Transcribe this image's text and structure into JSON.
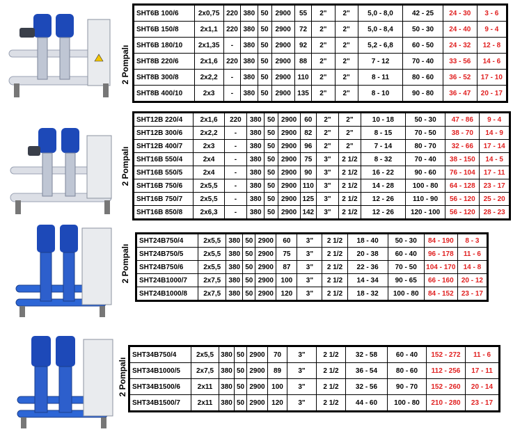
{
  "colors": {
    "red": "#e01f1f",
    "pump_blue": "#1d49b8",
    "panel": "#e9ebee"
  },
  "groups": [
    {
      "label": "2 Pompalı",
      "rows": [
        [
          "SHT6B 100/6",
          "2x0,75",
          "220",
          "380",
          "50",
          "2900",
          "55",
          "2\"",
          "2\"",
          "5,0 - 8,0",
          "42 - 25",
          "24 - 30",
          "3 - 6"
        ],
        [
          "SHT6B 150/8",
          "2x1,1",
          "220",
          "380",
          "50",
          "2900",
          "72",
          "2\"",
          "2\"",
          "5,0 - 8,4",
          "50 - 30",
          "24 - 40",
          "9 - 4"
        ],
        [
          "SHT6B 180/10",
          "2x1,35",
          "-",
          "380",
          "50",
          "2900",
          "92",
          "2\"",
          "2\"",
          "5,2 - 6,8",
          "60 - 50",
          "24 - 32",
          "12 - 8"
        ],
        [
          "SHT8B 220/6",
          "2x1,6",
          "220",
          "380",
          "50",
          "2900",
          "88",
          "2\"",
          "2\"",
          "7 - 12",
          "70 - 40",
          "33 - 56",
          "14 - 6"
        ],
        [
          "SHT8B 300/8",
          "2x2,2",
          "-",
          "380",
          "50",
          "2900",
          "110",
          "2\"",
          "2\"",
          "8 - 11",
          "80 - 60",
          "36 - 52",
          "17 - 10"
        ],
        [
          "SHT8B 400/10",
          "2x3",
          "-",
          "380",
          "50",
          "2900",
          "135",
          "2\"",
          "2\"",
          "8 - 10",
          "90 - 80",
          "36 - 47",
          "20 - 17"
        ]
      ]
    },
    {
      "label": "2 Pompalı",
      "rows": [
        [
          "SHT12B 220/4",
          "2x1,6",
          "220",
          "380",
          "50",
          "2900",
          "60",
          "2\"",
          "2\"",
          "10 - 18",
          "50 - 30",
          "47 - 86",
          "9 - 4"
        ],
        [
          "SHT12B 300/6",
          "2x2,2",
          "-",
          "380",
          "50",
          "2900",
          "82",
          "2\"",
          "2\"",
          "8 - 15",
          "70 - 50",
          "38 - 70",
          "14 - 9"
        ],
        [
          "SHT12B 400/7",
          "2x3",
          "-",
          "380",
          "50",
          "2900",
          "96",
          "2\"",
          "2\"",
          "7 - 14",
          "80 - 70",
          "32 - 66",
          "17 - 14"
        ],
        [
          "SHT16B 550/4",
          "2x4",
          "-",
          "380",
          "50",
          "2900",
          "75",
          "3\"",
          "2 1/2",
          "8 - 32",
          "70 - 40",
          "38 - 150",
          "14 - 5"
        ],
        [
          "SHT16B 550/5",
          "2x4",
          "-",
          "380",
          "50",
          "2900",
          "90",
          "3\"",
          "2 1/2",
          "16 - 22",
          "90 - 60",
          "76 - 104",
          "17 - 11"
        ],
        [
          "SHT16B 750/6",
          "2x5,5",
          "-",
          "380",
          "50",
          "2900",
          "110",
          "3\"",
          "2 1/2",
          "14 - 28",
          "100 - 80",
          "64 - 128",
          "23 - 17"
        ],
        [
          "SHT16B 750/7",
          "2x5,5",
          "-",
          "380",
          "50",
          "2900",
          "125",
          "3\"",
          "2 1/2",
          "12 - 26",
          "110 - 90",
          "56 - 120",
          "25 - 20"
        ],
        [
          "SHT16B 850/8",
          "2x6,3",
          "-",
          "380",
          "50",
          "2900",
          "142",
          "3\"",
          "2 1/2",
          "12 - 26",
          "120 - 100",
          "56 - 120",
          "28 - 23"
        ]
      ]
    },
    {
      "label": "2 Pompalı",
      "rows": [
        [
          "SHT24B750/4",
          "2x5,5",
          "380",
          "50",
          "2900",
          "60",
          "3\"",
          "2 1/2",
          "18 - 40",
          "50 - 30",
          "84 - 190",
          "8 - 3"
        ],
        [
          "SHT24B750/5",
          "2x5,5",
          "380",
          "50",
          "2900",
          "75",
          "3\"",
          "2 1/2",
          "20 - 38",
          "60 - 40",
          "96 - 178",
          "11 - 6"
        ],
        [
          "SHT24B750/6",
          "2x5,5",
          "380",
          "50",
          "2900",
          "87",
          "3\"",
          "2 1/2",
          "22 - 36",
          "70 - 50",
          "104 - 170",
          "14 - 8"
        ],
        [
          "SHT24B1000/7",
          "2x7,5",
          "380",
          "50",
          "2900",
          "100",
          "3\"",
          "2 1/2",
          "14 - 34",
          "90 - 65",
          "66 - 160",
          "20 - 12"
        ],
        [
          "SHT24B1000/8",
          "2x7,5",
          "380",
          "50",
          "2900",
          "120",
          "3\"",
          "2 1/2",
          "18 - 32",
          "100 - 80",
          "84 - 152",
          "23 - 17"
        ]
      ]
    },
    {
      "label": "2 Pompalı",
      "rows": [
        [
          "SHT34B750/4",
          "2x5,5",
          "380",
          "50",
          "2900",
          "70",
          "3\"",
          "2 1/2",
          "32 - 58",
          "60 - 40",
          "152 - 272",
          "11 - 6"
        ],
        [
          "SHT34B1000/5",
          "2x7,5",
          "380",
          "50",
          "2900",
          "89",
          "3\"",
          "2 1/2",
          "36 - 54",
          "80 - 60",
          "112 - 256",
          "17 - 11"
        ],
        [
          "SHT34B1500/6",
          "2x11",
          "380",
          "50",
          "2900",
          "100",
          "3\"",
          "2 1/2",
          "32 - 56",
          "90 - 70",
          "152 - 260",
          "20 - 14"
        ],
        [
          "SHT34B1500/7",
          "2x11",
          "380",
          "50",
          "2900",
          "120",
          "3\"",
          "2 1/2",
          "44 - 60",
          "100 - 80",
          "210 - 280",
          "23 - 17"
        ]
      ]
    }
  ]
}
